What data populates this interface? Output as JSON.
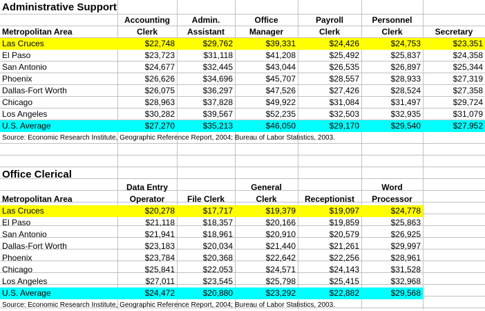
{
  "section1": {
    "title": "Administrative Support",
    "headers": {
      "area": "Metropolitan Area",
      "c1a": "Accounting",
      "c1b": "Clerk",
      "c2a": "Admin.",
      "c2b": "Assistant",
      "c3a": "Office",
      "c3b": "Manager",
      "c4a": "Payroll",
      "c4b": "Clerk",
      "c5a": "Personnel",
      "c5b": "Clerk",
      "c6": "Secretary"
    },
    "rows": [
      [
        "Las Cruces",
        "$22,748",
        "$29,762",
        "$39,331",
        "$24,426",
        "$24,753",
        "$23,351"
      ],
      [
        "El Paso",
        "$23,723",
        "$31,118",
        "$41,208",
        "$25,492",
        "$25,837",
        "$24,358"
      ],
      [
        "San Antonio",
        "$24,677",
        "$32,445",
        "$43,044",
        "$26,535",
        "$26,897",
        "$25,344"
      ],
      [
        "Phoenix",
        "$26,626",
        "$34,696",
        "$45,707",
        "$28,557",
        "$28,933",
        "$27,319"
      ],
      [
        "Dallas-Fort Worth",
        "$26,075",
        "$36,297",
        "$47,526",
        "$27,426",
        "$28,524",
        "$27,358"
      ],
      [
        "Chicago",
        "$28,963",
        "$37,828",
        "$49,922",
        "$31,084",
        "$31,497",
        "$29,724"
      ],
      [
        "Los Angeles",
        "$30,282",
        "$39,567",
        "$52,235",
        "$32,503",
        "$32,935",
        "$31,079"
      ],
      [
        "U.S. Average",
        "$27,270",
        "$35,213",
        "$46,050",
        "$29,170",
        "$29,540",
        "$27,952"
      ]
    ],
    "source": "Source:  Economic Research Institute, Geographic Reference Report, 2004; Bureau of Labor Statistics, 2003."
  },
  "section2": {
    "title": "Office Clerical",
    "headers": {
      "area": "Metropolitan Area",
      "c1a": "Data Entry",
      "c1b": "Operator",
      "c2b": "File Clerk",
      "c3a": "General",
      "c3b": "Clerk",
      "c4b": "Receptionist",
      "c5a": "Word",
      "c5b": "Processor"
    },
    "rows": [
      [
        "Las Cruces",
        "$20,278",
        "$17,717",
        "$19,379",
        "$19,097",
        "$24,778"
      ],
      [
        "El Paso",
        "$21,118",
        "$18,357",
        "$20,166",
        "$19,859",
        "$25,863"
      ],
      [
        "San Antonio",
        "$21,941",
        "$18,961",
        "$20,910",
        "$20,579",
        "$26,925"
      ],
      [
        "Dallas-Fort Worth",
        "$23,183",
        "$20,034",
        "$21,440",
        "$21,261",
        "$29,997"
      ],
      [
        "Phoenix",
        "$23,784",
        "$20,368",
        "$22,642",
        "$22,256",
        "$28,961"
      ],
      [
        "Chicago",
        "$25,841",
        "$22,053",
        "$24,571",
        "$24,143",
        "$31,528"
      ],
      [
        "Los Angeles",
        "$27,011",
        "$23,545",
        "$25,798",
        "$25,415",
        "$32,968"
      ],
      [
        "U.S. Average",
        "$24,472",
        "$20,880",
        "$23,292",
        "$22,882",
        "$29,568"
      ]
    ],
    "source": "Source:  Economic Research Institute, Geographic Reference Report, 2004; Bureau of Labor Statistics, 2003."
  },
  "colors": {
    "highlight_local": "#ffff00",
    "highlight_average": "#00ffff",
    "gridlines": "#c0c0c0"
  }
}
